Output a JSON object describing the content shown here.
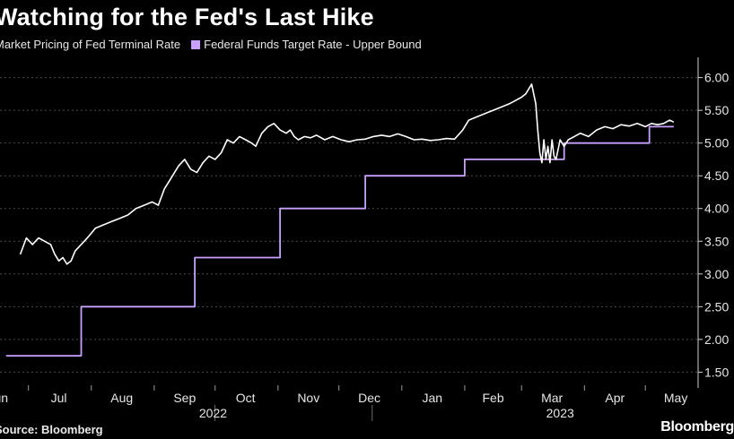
{
  "chart_data": {
    "type": "line",
    "title": "Watching for the Fed's Last Hike",
    "source": "Source: Bloomberg",
    "brand": "Bloomberg",
    "ylim": [
      1.3,
      6.2
    ],
    "y_ticks": [
      "1.50",
      "2.00",
      "2.50",
      "3.00",
      "3.50",
      "4.00",
      "4.50",
      "5.00",
      "5.50",
      "6.00"
    ],
    "x_month_labels": [
      "Jun",
      "Jul",
      "Aug",
      "Sep",
      "Oct",
      "Nov",
      "Dec",
      "Jan",
      "Feb",
      "Mar",
      "Apr",
      "May"
    ],
    "x_year_labels": [
      "2022",
      "2023"
    ],
    "grid": "horizontal dashed",
    "legend_position": "top-left",
    "colors": {
      "market": "#ffffff",
      "target": "#c9a0ff",
      "background": "#000000"
    },
    "series": [
      {
        "name": "Market Pricing of Fed Terminal Rate",
        "points": [
          [
            "2022-06-27",
            3.3
          ],
          [
            "2022-06-30",
            3.55
          ],
          [
            "2022-07-03",
            3.45
          ],
          [
            "2022-07-06",
            3.55
          ],
          [
            "2022-07-09",
            3.5
          ],
          [
            "2022-07-12",
            3.45
          ],
          [
            "2022-07-14",
            3.3
          ],
          [
            "2022-07-16",
            3.2
          ],
          [
            "2022-07-18",
            3.25
          ],
          [
            "2022-07-20",
            3.15
          ],
          [
            "2022-07-22",
            3.2
          ],
          [
            "2022-07-24",
            3.35
          ],
          [
            "2022-07-27",
            3.45
          ],
          [
            "2022-07-30",
            3.55
          ],
          [
            "2022-08-03",
            3.7
          ],
          [
            "2022-08-07",
            3.75
          ],
          [
            "2022-08-11",
            3.8
          ],
          [
            "2022-08-15",
            3.85
          ],
          [
            "2022-08-19",
            3.9
          ],
          [
            "2022-08-23",
            4.0
          ],
          [
            "2022-08-27",
            4.05
          ],
          [
            "2022-08-31",
            4.1
          ],
          [
            "2022-09-03",
            4.05
          ],
          [
            "2022-09-06",
            4.3
          ],
          [
            "2022-09-09",
            4.45
          ],
          [
            "2022-09-13",
            4.65
          ],
          [
            "2022-09-16",
            4.75
          ],
          [
            "2022-09-19",
            4.6
          ],
          [
            "2022-09-22",
            4.55
          ],
          [
            "2022-09-25",
            4.7
          ],
          [
            "2022-09-28",
            4.8
          ],
          [
            "2022-10-01",
            4.75
          ],
          [
            "2022-10-04",
            4.85
          ],
          [
            "2022-10-07",
            5.05
          ],
          [
            "2022-10-10",
            5.0
          ],
          [
            "2022-10-13",
            5.1
          ],
          [
            "2022-10-16",
            5.05
          ],
          [
            "2022-10-19",
            5.0
          ],
          [
            "2022-10-21",
            4.95
          ],
          [
            "2022-10-24",
            5.15
          ],
          [
            "2022-10-27",
            5.25
          ],
          [
            "2022-10-30",
            5.3
          ],
          [
            "2022-11-02",
            5.2
          ],
          [
            "2022-11-05",
            5.15
          ],
          [
            "2022-11-07",
            5.2
          ],
          [
            "2022-11-09",
            5.1
          ],
          [
            "2022-11-11",
            5.05
          ],
          [
            "2022-11-14",
            5.1
          ],
          [
            "2022-11-17",
            5.08
          ],
          [
            "2022-11-20",
            5.12
          ],
          [
            "2022-11-24",
            5.05
          ],
          [
            "2022-11-28",
            5.1
          ],
          [
            "2022-12-02",
            5.05
          ],
          [
            "2022-12-06",
            5.02
          ],
          [
            "2022-12-10",
            5.05
          ],
          [
            "2022-12-14",
            5.06
          ],
          [
            "2022-12-18",
            5.1
          ],
          [
            "2022-12-22",
            5.12
          ],
          [
            "2022-12-26",
            5.1
          ],
          [
            "2022-12-30",
            5.14
          ],
          [
            "2023-01-03",
            5.1
          ],
          [
            "2023-01-07",
            5.05
          ],
          [
            "2023-01-11",
            5.06
          ],
          [
            "2023-01-15",
            5.04
          ],
          [
            "2023-01-19",
            5.05
          ],
          [
            "2023-01-23",
            5.07
          ],
          [
            "2023-01-27",
            5.06
          ],
          [
            "2023-01-31",
            5.2
          ],
          [
            "2023-02-03",
            5.35
          ],
          [
            "2023-02-07",
            5.4
          ],
          [
            "2023-02-11",
            5.45
          ],
          [
            "2023-02-15",
            5.5
          ],
          [
            "2023-02-19",
            5.55
          ],
          [
            "2023-02-23",
            5.6
          ],
          [
            "2023-02-26",
            5.65
          ],
          [
            "2023-03-01",
            5.7
          ],
          [
            "2023-03-03",
            5.75
          ],
          [
            "2023-03-06",
            5.9
          ],
          [
            "2023-03-08",
            5.6
          ],
          [
            "2023-03-09",
            5.2
          ],
          [
            "2023-03-10",
            4.85
          ],
          [
            "2023-03-11",
            4.7
          ],
          [
            "2023-03-12",
            5.05
          ],
          [
            "2023-03-13",
            4.75
          ],
          [
            "2023-03-14",
            4.95
          ],
          [
            "2023-03-15",
            4.7
          ],
          [
            "2023-03-16",
            5.05
          ],
          [
            "2023-03-17",
            4.8
          ],
          [
            "2023-03-18",
            4.75
          ],
          [
            "2023-03-20",
            5.05
          ],
          [
            "2023-03-22",
            4.95
          ],
          [
            "2023-03-24",
            5.05
          ],
          [
            "2023-03-27",
            5.1
          ],
          [
            "2023-03-30",
            5.15
          ],
          [
            "2023-04-03",
            5.1
          ],
          [
            "2023-04-07",
            5.2
          ],
          [
            "2023-04-11",
            5.25
          ],
          [
            "2023-04-15",
            5.22
          ],
          [
            "2023-04-19",
            5.28
          ],
          [
            "2023-04-23",
            5.26
          ],
          [
            "2023-04-27",
            5.3
          ],
          [
            "2023-05-01",
            5.25
          ],
          [
            "2023-05-04",
            5.3
          ],
          [
            "2023-05-07",
            5.28
          ],
          [
            "2023-05-10",
            5.3
          ],
          [
            "2023-05-13",
            5.35
          ],
          [
            "2023-05-15",
            5.32
          ]
        ]
      },
      {
        "name": "Federal Funds Target Rate - Upper Bound",
        "points": [
          [
            "2022-06-20",
            1.75
          ],
          [
            "2022-07-27",
            1.75
          ],
          [
            "2022-07-27",
            2.5
          ],
          [
            "2022-09-21",
            2.5
          ],
          [
            "2022-09-21",
            3.25
          ],
          [
            "2022-11-02",
            3.25
          ],
          [
            "2022-11-02",
            4.0
          ],
          [
            "2022-12-14",
            4.0
          ],
          [
            "2022-12-14",
            4.5
          ],
          [
            "2023-02-01",
            4.5
          ],
          [
            "2023-02-01",
            4.75
          ],
          [
            "2023-03-22",
            4.75
          ],
          [
            "2023-03-22",
            5.0
          ],
          [
            "2023-05-03",
            5.0
          ],
          [
            "2023-05-03",
            5.25
          ],
          [
            "2023-05-15",
            5.25
          ]
        ]
      }
    ]
  }
}
